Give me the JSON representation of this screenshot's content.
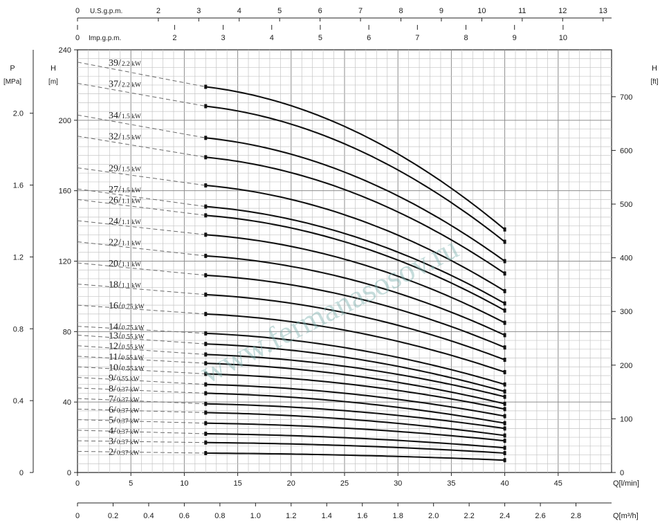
{
  "chart_data": {
    "type": "line",
    "xlabel": "Q[l/min]",
    "x2label": "Q[m³/h]",
    "ylabel": "H",
    "ylabel_unit": "[m]",
    "y_left_outer_label": "P",
    "y_left_outer_unit": "[MPa]",
    "y_right_label": "H",
    "y_right_unit": "[ft]",
    "top_axis1_label": "U.S.g.p.m.",
    "top_axis2_label": "Imp.g.p.m.",
    "xlim": [
      0,
      50
    ],
    "ylim": [
      0,
      240
    ],
    "x_ticks": [
      "0",
      "5",
      "10",
      "15",
      "20",
      "25",
      "30",
      "35",
      "40",
      "45"
    ],
    "y_ticks": [
      "0",
      "40",
      "80",
      "120",
      "160",
      "200",
      "240"
    ],
    "mpa_ticks": [
      "0",
      "0.4",
      "0.8",
      "1.2",
      "1.6",
      "2.0"
    ],
    "ft_ticks": [
      "0",
      "100",
      "200",
      "300",
      "400",
      "500",
      "600",
      "700"
    ],
    "m3h_ticks": [
      "0",
      "0.2",
      "0.4",
      "0.6",
      "0.8",
      "1.0",
      "1.2",
      "1.4",
      "1.6",
      "1.8",
      "2.0",
      "2.2",
      "2.4",
      "2.6",
      "2.8"
    ],
    "usgpm_ticks": [
      "0",
      "2",
      "3",
      "4",
      "5",
      "6",
      "7",
      "8",
      "9",
      "10",
      "11",
      "12",
      "13"
    ],
    "impgpm_ticks": [
      "0",
      "2",
      "3",
      "4",
      "5",
      "6",
      "7",
      "8",
      "9",
      "10"
    ],
    "grid": true,
    "q_start": 12,
    "q_end": 40,
    "series": [
      {
        "stages": "39/",
        "power": "2.2 kW",
        "h0": 233,
        "h12": 219,
        "h40": 138
      },
      {
        "stages": "37/",
        "power": "2.2 kW",
        "h0": 221,
        "h12": 208,
        "h40": 131
      },
      {
        "stages": "34/",
        "power": "1.5 kW",
        "h0": 203,
        "h12": 190,
        "h40": 120
      },
      {
        "stages": "32/",
        "power": "1.5 kW",
        "h0": 191,
        "h12": 179,
        "h40": 113
      },
      {
        "stages": "29/",
        "power": "1.5 kW",
        "h0": 173,
        "h12": 163,
        "h40": 103
      },
      {
        "stages": "27/",
        "power": "1.5 kW",
        "h0": 161,
        "h12": 151,
        "h40": 96
      },
      {
        "stages": "26/",
        "power": "1.1 kW",
        "h0": 155,
        "h12": 146,
        "h40": 92
      },
      {
        "stages": "24/",
        "power": "1.1 kW",
        "h0": 143,
        "h12": 135,
        "h40": 85
      },
      {
        "stages": "22/",
        "power": "1.1 kW",
        "h0": 131,
        "h12": 123,
        "h40": 78
      },
      {
        "stages": "20/",
        "power": "1.1 kW",
        "h0": 119,
        "h12": 112,
        "h40": 71
      },
      {
        "stages": "18/",
        "power": "1.1 kW",
        "h0": 107,
        "h12": 101,
        "h40": 64
      },
      {
        "stages": "16/",
        "power": "0.75 kW",
        "h0": 95,
        "h12": 90,
        "h40": 57
      },
      {
        "stages": "14/",
        "power": "0.75 kW",
        "h0": 83,
        "h12": 79,
        "h40": 50
      },
      {
        "stages": "13/",
        "power": "0.55 kW",
        "h0": 78,
        "h12": 73,
        "h40": 46
      },
      {
        "stages": "12/",
        "power": "0.55 kW",
        "h0": 72,
        "h12": 67,
        "h40": 43
      },
      {
        "stages": "11/",
        "power": "0.55 kW",
        "h0": 66,
        "h12": 62,
        "h40": 39
      },
      {
        "stages": "10/",
        "power": "0.55 kW",
        "h0": 60,
        "h12": 56,
        "h40": 36
      },
      {
        "stages": "9/",
        "power": "0.55 kW",
        "h0": 54,
        "h12": 50,
        "h40": 32
      },
      {
        "stages": "8/",
        "power": "0.37 kW",
        "h0": 48,
        "h12": 45,
        "h40": 28
      },
      {
        "stages": "7/",
        "power": "0.37 kW",
        "h0": 42,
        "h12": 39,
        "h40": 25
      },
      {
        "stages": "6/",
        "power": "0.37 kW",
        "h0": 36,
        "h12": 34,
        "h40": 21
      },
      {
        "stages": "5/",
        "power": "0.37 kW",
        "h0": 30,
        "h12": 28,
        "h40": 18
      },
      {
        "stages": "4/",
        "power": "0.37 kW",
        "h0": 24,
        "h12": 22,
        "h40": 14
      },
      {
        "stages": "3/",
        "power": "0.37 kW",
        "h0": 18,
        "h12": 17,
        "h40": 11
      },
      {
        "stages": "2/",
        "power": "0.37 kW",
        "h0": 12,
        "h12": 11,
        "h40": 7
      }
    ]
  },
  "watermark": "www.fermanasosov.ru"
}
